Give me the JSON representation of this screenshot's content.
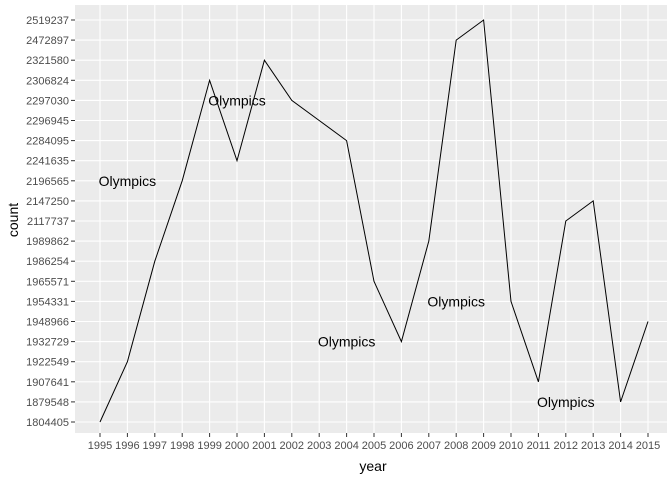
{
  "chart_data": {
    "type": "line",
    "xlabel": "year",
    "ylabel": "count",
    "x": [
      "1995",
      "1996",
      "1997",
      "1998",
      "1999",
      "2000",
      "2001",
      "2002",
      "2003",
      "2004",
      "2005",
      "2006",
      "2007",
      "2008",
      "2009",
      "2010",
      "2011",
      "2012",
      "2013",
      "2014",
      "2015"
    ],
    "x_tick_labels": [
      "1995",
      "1996",
      "1997",
      "1998",
      "1999",
      "2000",
      "2001",
      "2002",
      "2003",
      "2004",
      "2005",
      "2006",
      "2007",
      "2008",
      "2009",
      "2010",
      "2011",
      "2012",
      "2013",
      "2014",
      "2015"
    ],
    "values": [
      "1804405",
      "1922549",
      "1986254",
      "2196565",
      "2306824",
      "2241635",
      "2321580",
      "2297030",
      "2296945",
      "2284095",
      "1965571",
      "1932729",
      "1989862",
      "2472897",
      "2519237",
      "1954331",
      "1907641",
      "2117737",
      "2147250",
      "1879548",
      "1948966"
    ],
    "y_categories": [
      "1804405",
      "1879548",
      "1907641",
      "1922549",
      "1932729",
      "1948966",
      "1954331",
      "1965571",
      "1986254",
      "1989862",
      "2117737",
      "2147250",
      "2196565",
      "2241635",
      "2284095",
      "2296945",
      "2297030",
      "2306824",
      "2321580",
      "2472897",
      "2519237"
    ],
    "annotations": [
      {
        "text": "Olympics",
        "x": "1996",
        "y": "2196565"
      },
      {
        "text": "Olympics",
        "x": "2000",
        "y": "2297030"
      },
      {
        "text": "Olympics",
        "x": "2004",
        "y": "1932729"
      },
      {
        "text": "Olympics",
        "x": "2008",
        "y": "1954331"
      },
      {
        "text": "Olympics",
        "x": "2012",
        "y": "1879548"
      }
    ],
    "grid": true,
    "colors": {
      "panel": "#ebebeb",
      "grid": "#ffffff",
      "line": "#000000"
    }
  }
}
